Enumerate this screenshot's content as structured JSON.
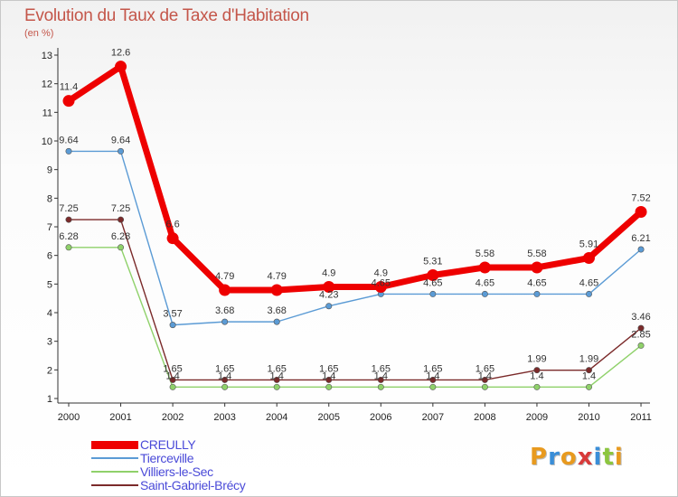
{
  "chart_data": {
    "type": "line",
    "title": "Evolution du Taux de Taxe d'Habitation",
    "subtitle": "(en %)",
    "xlabel": "",
    "ylabel": "",
    "x": [
      "2000",
      "2001",
      "2002",
      "2003",
      "2004",
      "2005",
      "2006",
      "2007",
      "2008",
      "2009",
      "2010",
      "2011"
    ],
    "ylim": [
      1,
      13
    ],
    "yticks": [
      "1",
      "2",
      "3",
      "4",
      "5",
      "6",
      "7",
      "8",
      "9",
      "10",
      "11",
      "12",
      "13"
    ],
    "grid": false,
    "legend_position": "bottom-left",
    "series": [
      {
        "name": "CREULLY",
        "color": "#ee0000",
        "values": [
          11.4,
          12.6,
          6.6,
          4.79,
          4.79,
          4.9,
          4.9,
          5.31,
          5.58,
          5.58,
          5.91,
          7.52
        ],
        "labels": [
          "11.4",
          "12.6",
          "6.6",
          "4.79",
          "4.79",
          "4.9",
          "4.9",
          "5.31",
          "5.58",
          "5.58",
          "5.91",
          "7.52"
        ]
      },
      {
        "name": "Tierceville",
        "color": "#5b9bd5",
        "values": [
          9.64,
          9.64,
          3.57,
          3.68,
          3.68,
          4.23,
          4.65,
          4.65,
          4.65,
          4.65,
          4.65,
          6.21
        ],
        "labels": [
          "9.64",
          "9.64",
          "3.57",
          "3.68",
          "3.68",
          "4.23",
          "4.65",
          "4.65",
          "4.65",
          "4.65",
          "4.65",
          "6.21"
        ]
      },
      {
        "name": "Villiers-le-Sec",
        "color": "#8fd16a",
        "values": [
          6.28,
          6.28,
          1.4,
          1.4,
          1.4,
          1.4,
          1.4,
          1.4,
          1.4,
          1.4,
          1.4,
          2.85
        ],
        "labels": [
          "6.28",
          "6.28",
          "1.4",
          "1.4",
          "1.4",
          "1.4",
          "1.4",
          "1.4",
          "1.4",
          "1.4",
          "1.4",
          "2.85"
        ]
      },
      {
        "name": "Saint-Gabriel-Brécy",
        "color": "#7b2a2a",
        "values": [
          7.25,
          7.25,
          1.65,
          1.65,
          1.65,
          1.65,
          1.65,
          1.65,
          1.65,
          1.99,
          1.99,
          3.46
        ],
        "labels": [
          "7.25",
          "7.25",
          "1.65",
          "1.65",
          "1.65",
          "1.65",
          "1.65",
          "1.65",
          "1.65",
          "1.99",
          "1.99",
          "3.46"
        ]
      }
    ]
  },
  "logo": {
    "letters": [
      "P",
      "r",
      "o",
      "x",
      "i",
      "t",
      "i"
    ],
    "colors": [
      "#e89a1f",
      "#3a8ed8",
      "#e89a1f",
      "#d83a3a",
      "#3a8ed8",
      "#8cc63f",
      "#e89a1f"
    ]
  }
}
